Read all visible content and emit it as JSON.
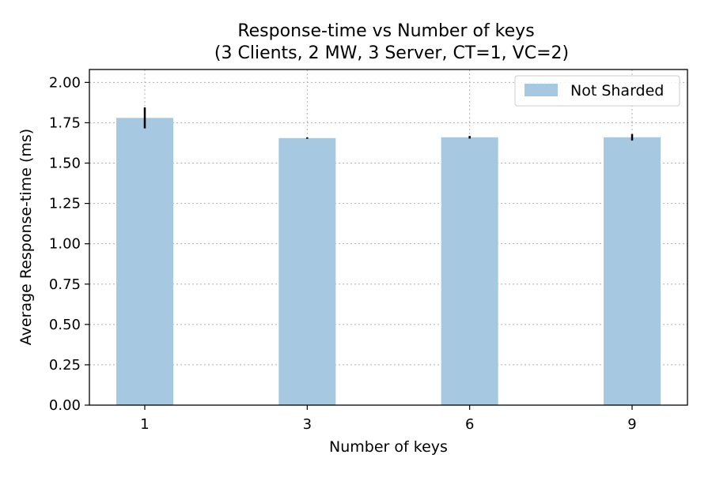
{
  "chart_data": {
    "type": "bar",
    "title": "Response-time vs Number of keys",
    "subtitle": "(3 Clients, 2 MW, 3 Server, CT=1, VC=2)",
    "xlabel": "Number of keys",
    "ylabel": "Average Response-time (ms)",
    "categories": [
      "1",
      "3",
      "6",
      "9"
    ],
    "series": [
      {
        "name": "Not Sharded",
        "color": "#a6c8e0",
        "values": [
          1.78,
          1.655,
          1.66,
          1.66
        ],
        "error": [
          0.065,
          0.004,
          0.008,
          0.02
        ]
      }
    ],
    "ylim": [
      0.0,
      2.08
    ],
    "yticks": [
      "0.00",
      "0.25",
      "0.50",
      "0.75",
      "1.00",
      "1.25",
      "1.50",
      "1.75",
      "2.00"
    ],
    "grid": true,
    "legend_position": "top-right"
  }
}
